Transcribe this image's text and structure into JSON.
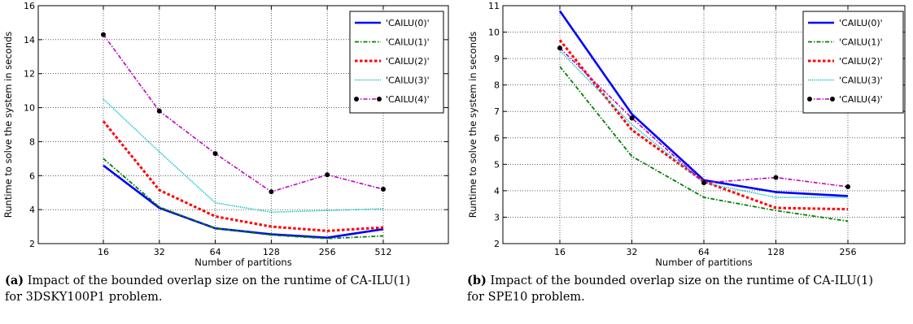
{
  "chart_data": [
    {
      "type": "line",
      "panel": "a",
      "categories": [
        "16",
        "32",
        "64",
        "128",
        "256",
        "512"
      ],
      "xlabel": "Number of partitions",
      "ylabel": "Runtime to solve the system in seconds",
      "ylim": [
        2,
        16
      ],
      "yticks": [
        2,
        4,
        6,
        8,
        10,
        12,
        14,
        16
      ],
      "grid": true,
      "legend_position": "top-right",
      "series": [
        {
          "name": "'CAILU(0)'",
          "color": "#0000ff",
          "style": "solid",
          "values": [
            6.6,
            4.1,
            2.9,
            2.55,
            2.35,
            2.85
          ]
        },
        {
          "name": "'CAILU(1)'",
          "color": "#008000",
          "style": "dashdot",
          "values": [
            7.0,
            4.15,
            2.9,
            2.5,
            2.3,
            2.45
          ]
        },
        {
          "name": "'CAILU(2)'",
          "color": "#ff0000",
          "style": "dotted",
          "values": [
            9.2,
            5.15,
            3.6,
            3.0,
            2.75,
            2.95
          ]
        },
        {
          "name": "'CAILU(3)'",
          "color": "#00bfbf",
          "style": "fine-dotted",
          "values": [
            10.5,
            7.4,
            4.4,
            3.85,
            3.95,
            4.05
          ]
        },
        {
          "name": "'CAILU(4)'",
          "color": "#bf00bf",
          "style": "dashdot-marker",
          "values": [
            14.3,
            9.8,
            7.3,
            5.05,
            6.05,
            5.2
          ]
        }
      ]
    },
    {
      "type": "line",
      "panel": "b",
      "categories": [
        "16",
        "32",
        "64",
        "128",
        "256"
      ],
      "xlabel": "Number of partitions",
      "ylabel": "Runtime to solve the system in seconds",
      "ylim": [
        2,
        11
      ],
      "yticks": [
        2,
        3,
        4,
        5,
        6,
        7,
        8,
        9,
        10,
        11
      ],
      "grid": true,
      "legend_position": "top-right",
      "series": [
        {
          "name": "'CAILU(0)'",
          "color": "#0000ff",
          "style": "solid",
          "values": [
            10.8,
            6.9,
            4.4,
            3.95,
            3.8
          ]
        },
        {
          "name": "'CAILU(1)'",
          "color": "#008000",
          "style": "dashdot",
          "values": [
            8.7,
            5.3,
            3.75,
            3.25,
            2.85
          ]
        },
        {
          "name": "'CAILU(2)'",
          "color": "#ff0000",
          "style": "dotted",
          "values": [
            9.7,
            6.3,
            4.35,
            3.35,
            3.3
          ]
        },
        {
          "name": "'CAILU(3)'",
          "color": "#00bfbf",
          "style": "fine-dotted",
          "values": [
            9.3,
            6.5,
            4.3,
            3.75,
            3.75
          ]
        },
        {
          "name": "'CAILU(4)'",
          "color": "#bf00bf",
          "style": "dashdot-marker",
          "values": [
            9.4,
            6.75,
            4.3,
            4.5,
            4.15
          ]
        }
      ]
    }
  ],
  "captions": {
    "a": {
      "label": "(a)",
      "text": "Impact of the bounded overlap size on the runtime of CA-ILU(1) for 3DSKY100P1 problem."
    },
    "b": {
      "label": "(b)",
      "text": "Impact of the bounded overlap size on the runtime of CA-ILU(1) for SPE10 problem."
    }
  }
}
